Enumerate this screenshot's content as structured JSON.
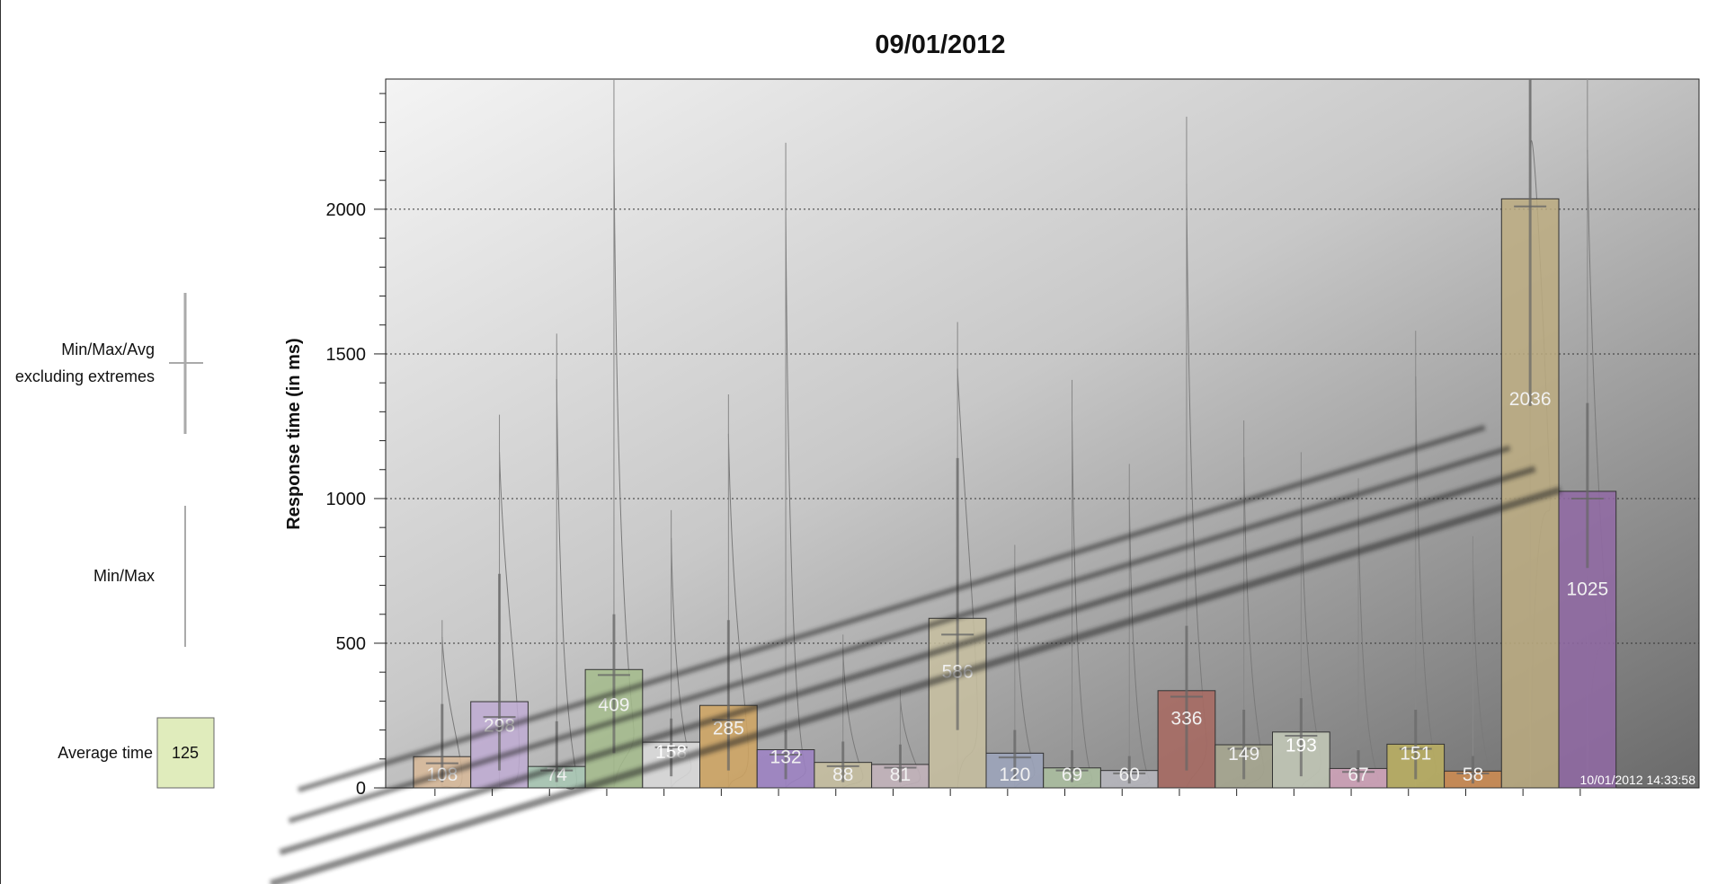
{
  "chart_data": {
    "type": "bar",
    "title": "09/01/2012",
    "ylabel": "Response time (in ms)",
    "ylim": [
      0,
      2450
    ],
    "yticks": [
      0,
      500,
      1000,
      1500,
      2000
    ],
    "grid": true,
    "timestamp": "10/01/2012 14:33:58",
    "legend": {
      "position": "left",
      "min_max_avg_label_1": "Min/Max/Avg",
      "min_max_avg_label_2": "excluding extremes",
      "min_max_label": "Min/Max",
      "average_label": "Average time",
      "average_sample_value": "125",
      "average_sample_color": "#e0ecbc"
    },
    "series": [
      {
        "avg": 108,
        "min": 0,
        "max": 580,
        "ex_min": 20,
        "ex_max": 290,
        "ex_avg": 85,
        "color": "#d8b898"
      },
      {
        "avg": 298,
        "min": 0,
        "max": 1290,
        "ex_min": 60,
        "ex_max": 740,
        "ex_avg": 245,
        "color": "#c0acd4"
      },
      {
        "avg": 74,
        "min": 0,
        "max": 1570,
        "ex_min": 20,
        "ex_max": 230,
        "ex_avg": 60,
        "color": "#a8c8b4"
      },
      {
        "avg": 409,
        "min": 0,
        "max": 2450,
        "ex_min": 120,
        "ex_max": 600,
        "ex_avg": 390,
        "color": "#a4bc8c"
      },
      {
        "avg": 158,
        "min": 0,
        "max": 960,
        "ex_min": 40,
        "ex_max": 240,
        "ex_avg": 140,
        "color": "#dcdcdc"
      },
      {
        "avg": 285,
        "min": 0,
        "max": 1360,
        "ex_min": 60,
        "ex_max": 580,
        "ex_avg": 235,
        "color": "#d0a460"
      },
      {
        "avg": 132,
        "min": 0,
        "max": 2230,
        "ex_min": 30,
        "ex_max": 200,
        "ex_avg": 115,
        "color": "#9c80c4"
      },
      {
        "avg": 88,
        "min": 0,
        "max": 530,
        "ex_min": 20,
        "ex_max": 160,
        "ex_avg": 75,
        "color": "#c8c0a0"
      },
      {
        "avg": 81,
        "min": 0,
        "max": 340,
        "ex_min": 20,
        "ex_max": 150,
        "ex_avg": 70,
        "color": "#c4b4bc"
      },
      {
        "avg": 586,
        "min": 0,
        "max": 1610,
        "ex_min": 200,
        "ex_max": 1140,
        "ex_avg": 530,
        "color": "#c8c0a0"
      },
      {
        "avg": 120,
        "min": 0,
        "max": 840,
        "ex_min": 30,
        "ex_max": 200,
        "ex_avg": 105,
        "color": "#9ca4bc"
      },
      {
        "avg": 69,
        "min": 0,
        "max": 1410,
        "ex_min": 20,
        "ex_max": 130,
        "ex_avg": 60,
        "color": "#acc0a0"
      },
      {
        "avg": 60,
        "min": 0,
        "max": 1120,
        "ex_min": 15,
        "ex_max": 110,
        "ex_avg": 50,
        "color": "#b8b8c0"
      },
      {
        "avg": 336,
        "min": 0,
        "max": 2320,
        "ex_min": 60,
        "ex_max": 560,
        "ex_avg": 315,
        "color": "#a86860"
      },
      {
        "avg": 149,
        "min": 0,
        "max": 1270,
        "ex_min": 30,
        "ex_max": 270,
        "ex_avg": 135,
        "color": "#a8a890"
      },
      {
        "avg": 193,
        "min": 0,
        "max": 1160,
        "ex_min": 40,
        "ex_max": 310,
        "ex_avg": 180,
        "color": "#c4cab8"
      },
      {
        "avg": 67,
        "min": 0,
        "max": 1070,
        "ex_min": 20,
        "ex_max": 130,
        "ex_avg": 55,
        "color": "#d4a4bc"
      },
      {
        "avg": 151,
        "min": 0,
        "max": 1580,
        "ex_min": 30,
        "ex_max": 270,
        "ex_avg": 135,
        "color": "#bcb060"
      },
      {
        "avg": 58,
        "min": 0,
        "max": 870,
        "ex_min": 15,
        "ex_max": 110,
        "ex_avg": 50,
        "color": "#d08c50"
      },
      {
        "avg": 2036,
        "min": 0,
        "max": 2450,
        "ex_min": 1320,
        "ex_max": 2450,
        "ex_avg": 2010,
        "color": "#bcac80"
      },
      {
        "avg": 1025,
        "min": 0,
        "max": 2450,
        "ex_min": 760,
        "ex_max": 1330,
        "ex_avg": 1000,
        "color": "#9068a4"
      }
    ]
  }
}
